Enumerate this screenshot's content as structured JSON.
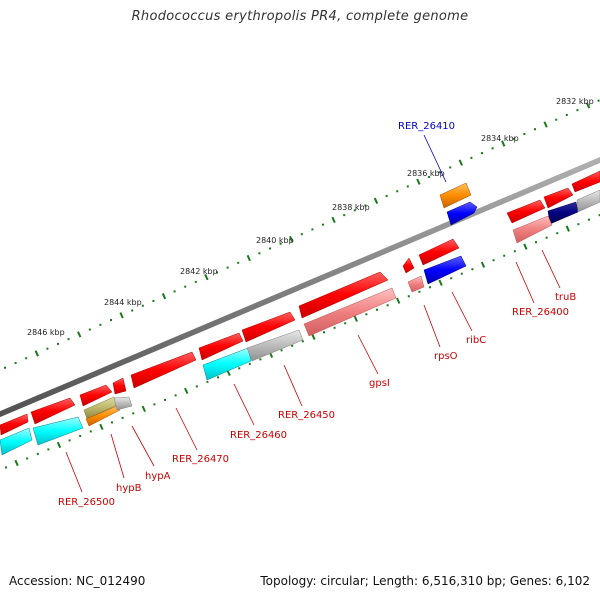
{
  "title": "Rhodococcus erythropolis PR4, complete genome",
  "footer": {
    "accession": "Accession: NC_012490",
    "topology": "Topology: circular; Length: 6,516,310 bp; Genes: 6,102"
  },
  "scale_labels": [
    "2832 kbp",
    "2834 kbp",
    "2836 kbp",
    "2838 kbp",
    "2840 kbp",
    "2842 kbp",
    "2844 kbp",
    "2846 kbp"
  ],
  "gene_labels": {
    "RER_26410": "RER_26410",
    "truB": "truB",
    "RER_26400": "RER_26400",
    "ribC": "ribC",
    "rpsO": "rpsO",
    "gpsI": "gpsI",
    "RER_26450": "RER_26450",
    "RER_26460": "RER_26460",
    "RER_26470": "RER_26470",
    "hypA": "hypA",
    "hypB": "hypB",
    "RER_26500": "RER_26500"
  },
  "colors": {
    "backbone": "#808080",
    "scale_ticks": "#1a7a1a",
    "gene_red": "#ff0000",
    "gene_pink": "#f08080",
    "gene_blue": "#0000ff",
    "gene_navy": "#000080",
    "gene_cyan": "#00ffff",
    "gene_grey": "#bbbbbb",
    "gene_orange": "#ff8c00",
    "gene_olive": "#bdb76b",
    "label_red": "#cc0000",
    "label_blue": "#0000cc"
  }
}
